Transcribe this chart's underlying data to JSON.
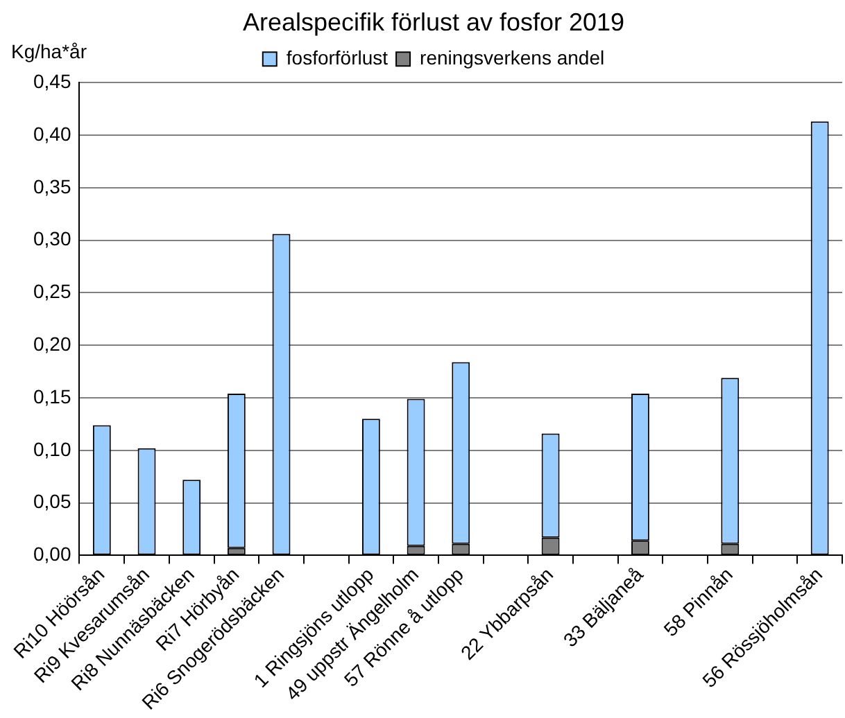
{
  "chart_data": {
    "type": "bar",
    "title": "Arealspecifik förlust av fosfor 2019",
    "ylabel": "Kg/ha*år",
    "categories": [
      "Ri10 Höörsån",
      "Ri9 Kvesarumsån",
      "Ri8 Nunnäsbäcken",
      "Ri7 Hörbyån",
      "Ri6 Snogerödsbäcken",
      null,
      "1 Ringsjöns utlopp",
      "49 uppstr Ängelholm",
      "57 Rönne å utlopp",
      null,
      "22 Ybbarpsån",
      null,
      "33 Bäljaneå",
      null,
      "58 Pinnån",
      null,
      "56 Rössjöholmsån"
    ],
    "stacked": true,
    "series": [
      {
        "name": "reningsverkens andel",
        "color": "#808080",
        "values": [
          null,
          null,
          null,
          0.007,
          null,
          null,
          null,
          0.009,
          0.011,
          null,
          0.017,
          null,
          0.014,
          null,
          0.011,
          null,
          null
        ]
      },
      {
        "name": "fosforförlust",
        "color": "#99ccff",
        "values": [
          0.124,
          0.102,
          0.072,
          0.147,
          0.306,
          null,
          0.13,
          0.14,
          0.173,
          null,
          0.099,
          null,
          0.14,
          null,
          0.158,
          null,
          0.413
        ]
      }
    ],
    "ylim": [
      0,
      0.45
    ],
    "yticks": [
      {
        "value": 0,
        "label": "0,00"
      },
      {
        "value": 0.05,
        "label": "0,05"
      },
      {
        "value": 0.1,
        "label": "0,10"
      },
      {
        "value": 0.15,
        "label": "0,15"
      },
      {
        "value": 0.2,
        "label": "0,20"
      },
      {
        "value": 0.25,
        "label": "0,25"
      },
      {
        "value": 0.3,
        "label": "0,30"
      },
      {
        "value": 0.35,
        "label": "0,35"
      },
      {
        "value": 0.4,
        "label": "0,40"
      },
      {
        "value": 0.45,
        "label": "0,45"
      }
    ],
    "grid": "y",
    "legend": "top"
  }
}
